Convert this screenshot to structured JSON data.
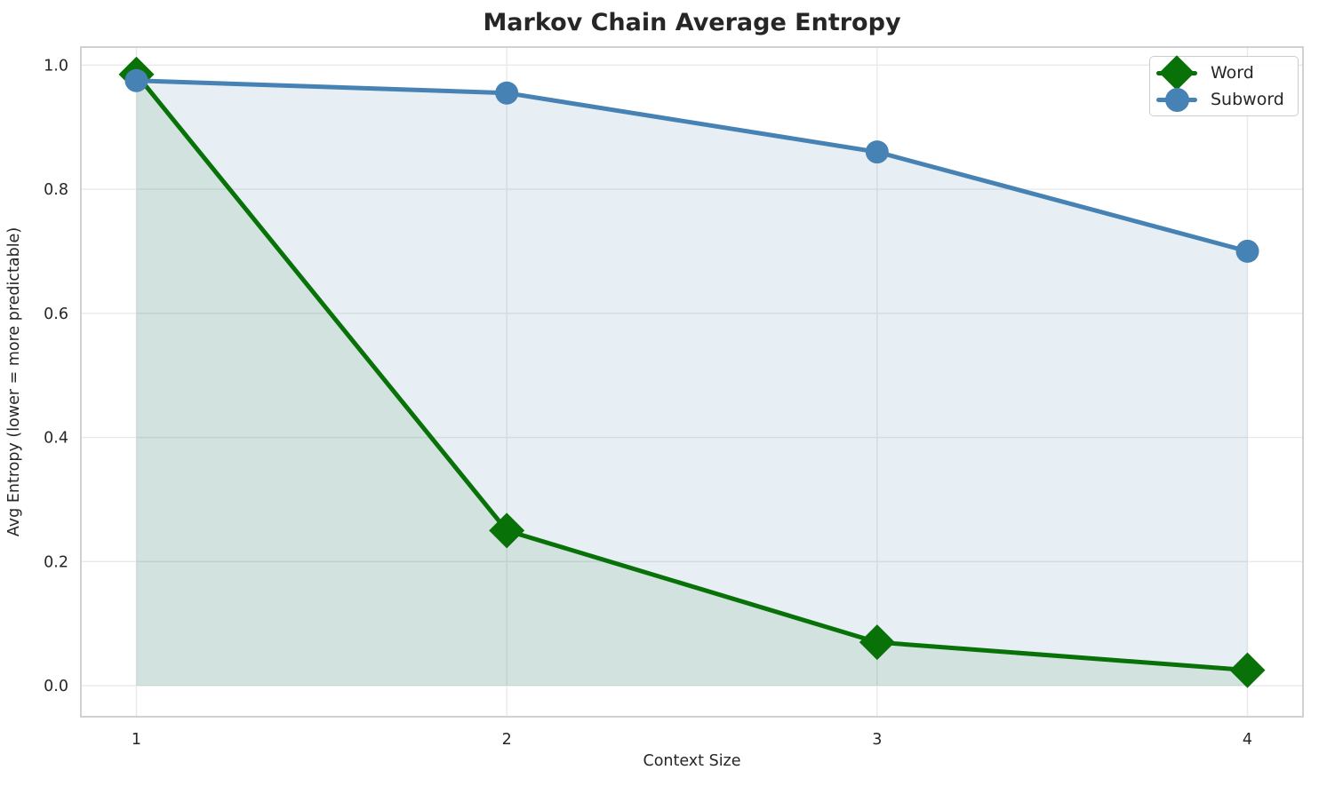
{
  "chart_data": {
    "type": "line",
    "title": "Markov Chain Average Entropy",
    "xlabel": "Context Size",
    "ylabel": "Avg Entropy (lower = more predictable)",
    "x": [
      1,
      2,
      3,
      4
    ],
    "series": [
      {
        "name": "Word",
        "values": [
          0.985,
          0.25,
          0.07,
          0.025
        ],
        "color": "#087208",
        "fill_color": "rgba(8,114,8,0.10)",
        "marker": "diamond"
      },
      {
        "name": "Subword",
        "values": [
          0.975,
          0.955,
          0.86,
          0.7
        ],
        "color": "#4682b4",
        "fill_color": "rgba(70,130,180,0.13)",
        "marker": "circle"
      }
    ],
    "x_ticks": [
      1,
      2,
      3,
      4
    ],
    "x_tick_labels": [
      "1",
      "2",
      "3",
      "4"
    ],
    "y_ticks": [
      0.0,
      0.2,
      0.4,
      0.6,
      0.8,
      1.0
    ],
    "y_tick_labels": [
      "0.0",
      "0.2",
      "0.4",
      "0.6",
      "0.8",
      "1.0"
    ],
    "xlim": [
      0.85,
      4.15
    ],
    "ylim": [
      -0.05,
      1.029
    ],
    "grid": true,
    "fill_to_zero": true,
    "legend_position": "upper right",
    "colors": {
      "grid": "#e9e9e9",
      "spine": "#cccccc",
      "text": "#262626",
      "background": "#ffffff"
    }
  }
}
